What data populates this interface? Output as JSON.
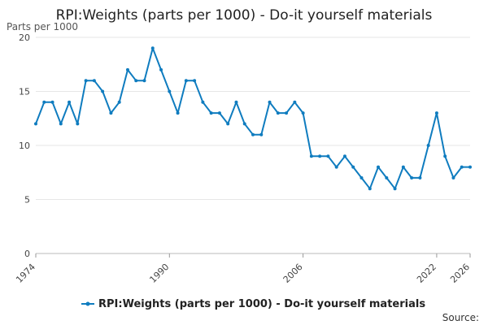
{
  "chart_data": {
    "type": "line",
    "title": "RPI:Weights (parts per 1000) - Do-it yourself materials",
    "ylabel": "Parts per 1000",
    "xlabel": "",
    "x": [
      1974,
      1975,
      1976,
      1977,
      1978,
      1979,
      1980,
      1981,
      1982,
      1983,
      1984,
      1985,
      1986,
      1987,
      1988,
      1989,
      1990,
      1991,
      1992,
      1993,
      1994,
      1995,
      1996,
      1997,
      1998,
      1999,
      2000,
      2001,
      2002,
      2003,
      2004,
      2005,
      2006,
      2007,
      2008,
      2009,
      2010,
      2011,
      2012,
      2013,
      2014,
      2015,
      2016,
      2017,
      2018,
      2019,
      2020,
      2021,
      2022,
      2023,
      2024,
      2025,
      2026
    ],
    "series": [
      {
        "name": "RPI:Weights (parts per 1000) - Do-it yourself materials",
        "color": "#0f7cbf",
        "values": [
          12,
          14,
          14,
          12,
          14,
          12,
          16,
          16,
          15,
          13,
          14,
          17,
          16,
          16,
          19,
          17,
          15,
          13,
          16,
          16,
          14,
          13,
          13,
          12,
          14,
          12,
          11,
          11,
          14,
          13,
          13,
          14,
          13,
          9,
          9,
          9,
          8,
          9,
          8,
          7,
          6,
          8,
          7,
          6,
          8,
          7,
          7,
          10,
          13,
          9,
          7,
          8,
          8
        ]
      }
    ],
    "xticks": [
      "1974",
      "1990",
      "2006",
      "2022",
      "2026"
    ],
    "yticks": [
      "0",
      "5",
      "10",
      "15",
      "20"
    ],
    "xlim": [
      1974,
      2026
    ],
    "ylim": [
      0,
      20
    ],
    "grid": true,
    "legend": "bottom",
    "source_label": "Source:"
  }
}
